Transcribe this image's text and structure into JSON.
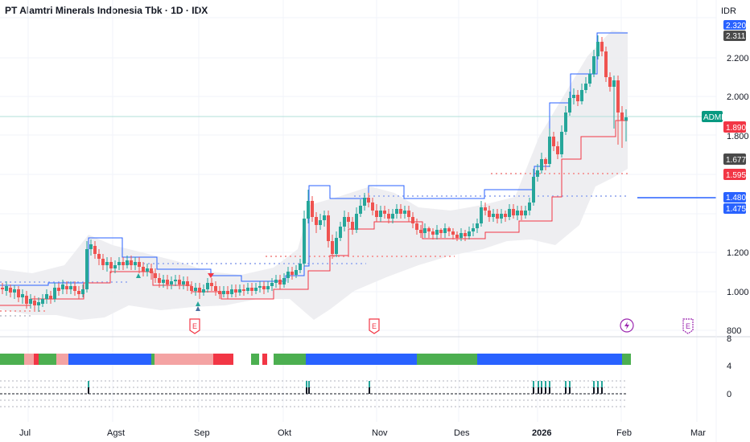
{
  "header": {
    "title": "PT Alamtri Minerals Indonesia Tbk · 1D · IDX",
    "currency": "IDR"
  },
  "price_axis": {
    "ticks": [
      "2.200",
      "2.000",
      "1.800",
      "1.200",
      "1.000",
      "800"
    ]
  },
  "price_tags": [
    {
      "text": "2.320",
      "color": "#2962ff"
    },
    {
      "text": "2.311",
      "color": "#4a4a4a"
    },
    {
      "text": "1.890",
      "color": "#f23645"
    },
    {
      "text": "1.677",
      "color": "#4a4a4a"
    },
    {
      "text": "1.595",
      "color": "#f23645"
    },
    {
      "text": "1.480",
      "color": "#2962ff"
    },
    {
      "text": "1.475",
      "color": "#2962ff"
    }
  ],
  "symbol_tag": {
    "text": "ADMR",
    "color": "#089981"
  },
  "time_axis": {
    "labels": [
      "Jul",
      "Agst",
      "Sep",
      "Okt",
      "Nov",
      "Des",
      "2026",
      "Feb",
      "Mar"
    ]
  },
  "indicator_axis": {
    "ticks": [
      "8",
      "4",
      "0"
    ]
  },
  "event_icons": [
    {
      "icon": "earnings-icon",
      "text": "E"
    },
    {
      "icon": "earnings-icon",
      "text": "E"
    },
    {
      "icon": "lightning-icon",
      "text": "⚡"
    },
    {
      "icon": "earnings-icon",
      "text": "E"
    }
  ],
  "colors": {
    "up": "#26a69a",
    "down": "#ef5350",
    "upper_line": "#2962ff",
    "lower_line": "#f23645",
    "band_fill": "#e9e9ec",
    "strip_green": "#4caf50",
    "strip_blue": "#2962ff",
    "strip_pink": "#f4a3a3",
    "strip_red": "#f23645"
  }
}
